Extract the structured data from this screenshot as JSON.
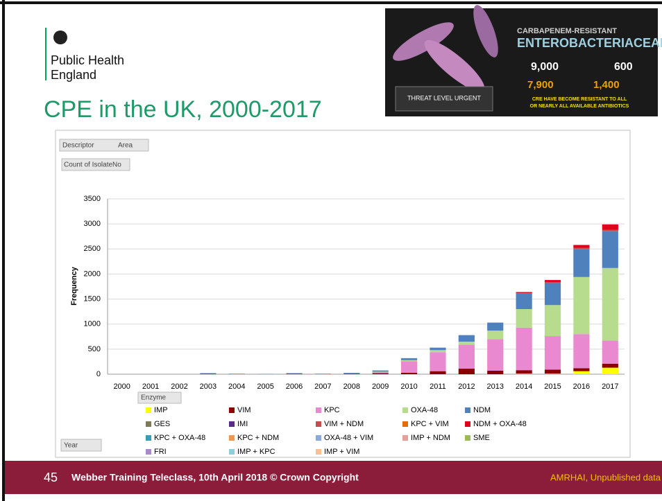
{
  "logo": {
    "line1": "Public Health",
    "line2": "England"
  },
  "slide_title": "CPE in the UK, 2000-2017",
  "infographic": {
    "title1": "CARBAPENEM-RESISTANT",
    "title2": "ENTEROBACTERIACEAE",
    "stat1": "9,000",
    "stat2": "600",
    "stat3": "7,900",
    "stat4": "1,400",
    "threat": "THREAT LEVEL URGENT",
    "warning1": "CRE HAVE BECOME RESISTANT TO ALL",
    "warning2": "OR NEARLY ALL AVAILABLE ANTIBIOTICS"
  },
  "pivot": {
    "descriptor": "Descriptor",
    "area": "Area",
    "count": "Count of IsolateNo",
    "enzyme": "Enzyme",
    "year": "Year"
  },
  "footer": {
    "page": "45",
    "text": "Webber Training Teleclass, 10th April 2018 © Crown Copyright",
    "source": "AMRHAI, Unpublished data"
  },
  "chart_data": {
    "type": "stacked_bar",
    "y_label": "Frequency",
    "categories": [
      "2000",
      "2001",
      "2002",
      "2003",
      "2004",
      "2005",
      "2006",
      "2007",
      "2008",
      "2009",
      "2010",
      "2011",
      "2012",
      "2013",
      "2014",
      "2015",
      "2016",
      "2017"
    ],
    "ylim": [
      0,
      3500
    ],
    "yticks": [
      0,
      500,
      1000,
      1500,
      2000,
      2500,
      3000,
      3500
    ],
    "grid": true,
    "series": [
      {
        "name": "IMP",
        "color": "#ffff00",
        "values": [
          0,
          0,
          0,
          0,
          0,
          0,
          0,
          0,
          0,
          0,
          0,
          0,
          0,
          0,
          10,
          10,
          60,
          130
        ]
      },
      {
        "name": "VIM",
        "color": "#8b0000",
        "values": [
          0,
          0,
          0,
          10,
          0,
          0,
          10,
          0,
          10,
          20,
          30,
          60,
          110,
          70,
          70,
          80,
          60,
          80
        ]
      },
      {
        "name": "KPC",
        "color": "#e98ad0",
        "values": [
          0,
          0,
          0,
          0,
          0,
          0,
          0,
          0,
          0,
          20,
          230,
          380,
          480,
          630,
          850,
          670,
          680,
          460
        ]
      },
      {
        "name": "OXA-48",
        "color": "#b8dc8e",
        "values": [
          0,
          0,
          0,
          0,
          0,
          0,
          0,
          0,
          0,
          10,
          20,
          40,
          60,
          170,
          370,
          620,
          1140,
          1450
        ]
      },
      {
        "name": "NDM",
        "color": "#4f81bd",
        "values": [
          0,
          0,
          0,
          10,
          10,
          5,
          10,
          10,
          15,
          25,
          40,
          50,
          130,
          160,
          310,
          440,
          550,
          730
        ]
      },
      {
        "name": "GES",
        "color": "#7f7a5a",
        "values": [
          0,
          0,
          0,
          0,
          0,
          0,
          0,
          0,
          0,
          0,
          0,
          0,
          0,
          0,
          0,
          0,
          10,
          10
        ]
      },
      {
        "name": "IMI",
        "color": "#5b2b82",
        "values": [
          0,
          0,
          0,
          0,
          0,
          0,
          0,
          0,
          0,
          0,
          0,
          0,
          0,
          0,
          0,
          0,
          0,
          0
        ]
      },
      {
        "name": "VIM + NDM",
        "color": "#c0504d",
        "values": [
          0,
          0,
          0,
          0,
          0,
          0,
          0,
          0,
          0,
          0,
          0,
          0,
          0,
          0,
          10,
          20,
          20,
          20
        ]
      },
      {
        "name": "KPC + VIM",
        "color": "#e46c0a",
        "values": [
          0,
          0,
          0,
          0,
          0,
          0,
          0,
          0,
          0,
          0,
          0,
          0,
          0,
          0,
          0,
          0,
          0,
          0
        ]
      },
      {
        "name": "NDM + OXA-48",
        "color": "#e0001b",
        "values": [
          0,
          0,
          0,
          0,
          0,
          0,
          0,
          0,
          0,
          0,
          0,
          0,
          0,
          0,
          20,
          40,
          60,
          110
        ]
      },
      {
        "name": "KPC + OXA-48",
        "color": "#31a0b8",
        "values": [
          0,
          0,
          0,
          0,
          0,
          0,
          0,
          0,
          0,
          0,
          0,
          0,
          0,
          0,
          0,
          0,
          0,
          0
        ]
      },
      {
        "name": "KPC + NDM",
        "color": "#f79646",
        "values": [
          0,
          0,
          0,
          0,
          0,
          0,
          0,
          0,
          0,
          0,
          0,
          0,
          0,
          0,
          0,
          0,
          0,
          0
        ]
      },
      {
        "name": "OXA-48 + VIM",
        "color": "#8ea9db",
        "values": [
          0,
          0,
          0,
          0,
          0,
          0,
          0,
          0,
          0,
          0,
          0,
          0,
          0,
          0,
          0,
          0,
          0,
          0
        ]
      },
      {
        "name": "IMP + NDM",
        "color": "#e6a09c",
        "values": [
          0,
          0,
          0,
          0,
          0,
          0,
          0,
          0,
          0,
          0,
          0,
          0,
          0,
          0,
          0,
          0,
          0,
          0
        ]
      },
      {
        "name": "SME",
        "color": "#9bbb59",
        "values": [
          0,
          0,
          0,
          0,
          0,
          0,
          0,
          0,
          0,
          0,
          0,
          0,
          0,
          0,
          0,
          0,
          0,
          0
        ]
      },
      {
        "name": "FRI",
        "color": "#a68ac9",
        "values": [
          0,
          0,
          0,
          0,
          0,
          0,
          0,
          0,
          0,
          0,
          0,
          0,
          0,
          0,
          0,
          0,
          0,
          0
        ]
      },
      {
        "name": "IMP + KPC",
        "color": "#92cddc",
        "values": [
          0,
          0,
          0,
          0,
          0,
          0,
          0,
          0,
          0,
          0,
          0,
          0,
          0,
          0,
          0,
          0,
          0,
          0
        ]
      },
      {
        "name": "IMP + VIM",
        "color": "#fac090",
        "values": [
          0,
          0,
          0,
          0,
          0,
          0,
          0,
          0,
          0,
          0,
          0,
          0,
          0,
          0,
          0,
          0,
          0,
          0
        ]
      }
    ]
  }
}
